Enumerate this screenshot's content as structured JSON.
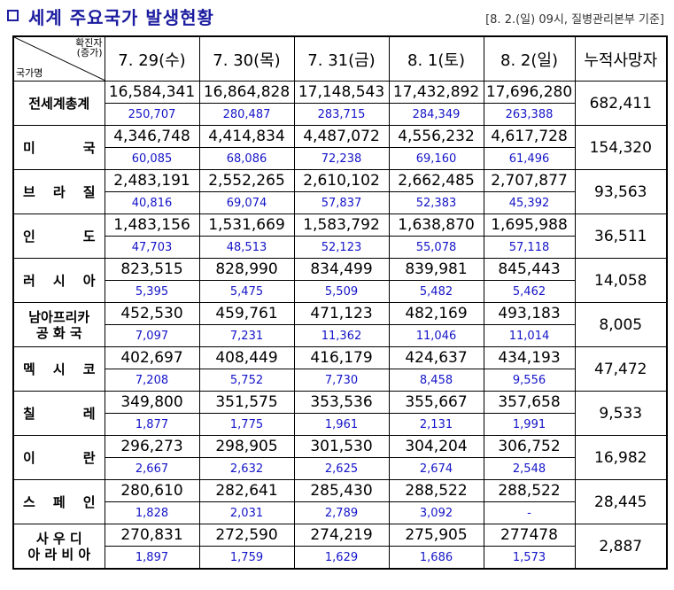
{
  "header": {
    "title": "세계 주요국가 발생현황",
    "basis": "[8. 2.(일) 09시, 질병관리본부 기준]"
  },
  "table": {
    "corner_top_line1": "확진자",
    "corner_top_line2": "(증가)",
    "corner_bottom": "국가명",
    "dates": [
      "7. 29(수)",
      "7. 30(목)",
      "7. 31(금)",
      "8. 1(토)",
      "8. 2(일)"
    ],
    "death_header": "누적사망자",
    "rows": [
      {
        "country": "전세계총계",
        "spread": false,
        "confirmed": [
          "16,584,341",
          "16,864,828",
          "17,148,543",
          "17,432,892",
          "17,696,280"
        ],
        "increase": [
          "250,707",
          "280,487",
          "283,715",
          "284,349",
          "263,388"
        ],
        "deaths": "682,411"
      },
      {
        "country": "미 국",
        "spread": true,
        "chars": [
          "미",
          "국"
        ],
        "confirmed": [
          "4,346,748",
          "4,414,834",
          "4,487,072",
          "4,556,232",
          "4,617,728"
        ],
        "increase": [
          "60,085",
          "68,086",
          "72,238",
          "69,160",
          "61,496"
        ],
        "deaths": "154,320"
      },
      {
        "country": "브 라 질",
        "spread": true,
        "chars": [
          "브",
          "라",
          "질"
        ],
        "confirmed": [
          "2,483,191",
          "2,552,265",
          "2,610,102",
          "2,662,485",
          "2,707,877"
        ],
        "increase": [
          "40,816",
          "69,074",
          "57,837",
          "52,383",
          "45,392"
        ],
        "deaths": "93,563"
      },
      {
        "country": "인 도",
        "spread": true,
        "chars": [
          "인",
          "도"
        ],
        "confirmed": [
          "1,483,156",
          "1,531,669",
          "1,583,792",
          "1,638,870",
          "1,695,988"
        ],
        "increase": [
          "47,703",
          "48,513",
          "52,123",
          "55,078",
          "57,118"
        ],
        "deaths": "36,511"
      },
      {
        "country": "러 시 아",
        "spread": true,
        "chars": [
          "러",
          "시",
          "아"
        ],
        "confirmed": [
          "823,515",
          "828,990",
          "834,499",
          "839,981",
          "845,443"
        ],
        "increase": [
          "5,395",
          "5,475",
          "5,509",
          "5,482",
          "5,462"
        ],
        "deaths": "14,058"
      },
      {
        "country": "남아프리카 공 화 국",
        "spread": false,
        "lines": [
          "남아프리카",
          "공 화 국"
        ],
        "confirmed": [
          "452,530",
          "459,761",
          "471,123",
          "482,169",
          "493,183"
        ],
        "increase": [
          "7,097",
          "7,231",
          "11,362",
          "11,046",
          "11,014"
        ],
        "deaths": "8,005"
      },
      {
        "country": "멕 시 코",
        "spread": true,
        "chars": [
          "멕",
          "시",
          "코"
        ],
        "confirmed": [
          "402,697",
          "408,449",
          "416,179",
          "424,637",
          "434,193"
        ],
        "increase": [
          "7,208",
          "5,752",
          "7,730",
          "8,458",
          "9,556"
        ],
        "deaths": "47,472"
      },
      {
        "country": "칠 레",
        "spread": true,
        "chars": [
          "칠",
          "레"
        ],
        "confirmed": [
          "349,800",
          "351,575",
          "353,536",
          "355,667",
          "357,658"
        ],
        "increase": [
          "1,877",
          "1,775",
          "1,961",
          "2,131",
          "1,991"
        ],
        "deaths": "9,533"
      },
      {
        "country": "이 란",
        "spread": true,
        "chars": [
          "이",
          "란"
        ],
        "confirmed": [
          "296,273",
          "298,905",
          "301,530",
          "304,204",
          "306,752"
        ],
        "increase": [
          "2,667",
          "2,632",
          "2,625",
          "2,674",
          "2,548"
        ],
        "deaths": "16,982"
      },
      {
        "country": "스 페 인",
        "spread": true,
        "chars": [
          "스",
          "페",
          "인"
        ],
        "confirmed": [
          "280,610",
          "282,641",
          "285,430",
          "288,522",
          "288,522"
        ],
        "increase": [
          "1,828",
          "2,031",
          "2,789",
          "3,092",
          "-"
        ],
        "deaths": "28,445"
      },
      {
        "country": "사 우 디 아 라 비 아",
        "spread": false,
        "lines": [
          "사 우 디",
          "아 라 비 아"
        ],
        "confirmed": [
          "270,831",
          "272,590",
          "274,219",
          "275,905",
          "277478"
        ],
        "increase": [
          "1,897",
          "1,759",
          "1,629",
          "1,686",
          "1,573"
        ],
        "deaths": "2,887"
      }
    ]
  },
  "colors": {
    "title": "#1c1ca0",
    "increase": "#1414c8",
    "border": "#000000"
  }
}
